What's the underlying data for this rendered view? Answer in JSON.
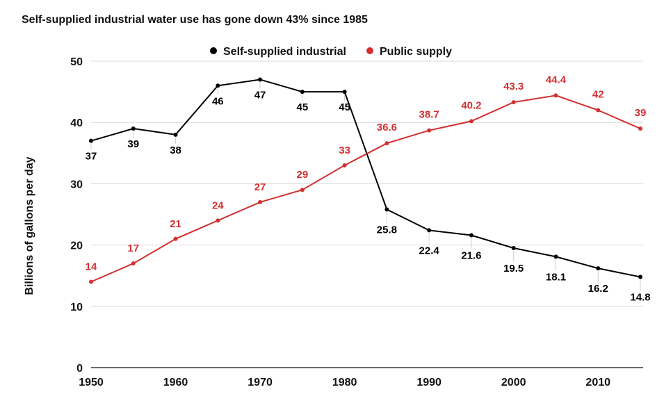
{
  "chart_data": {
    "type": "line",
    "title": "Self-supplied industrial water use has gone down 43% since 1985",
    "xlabel": "",
    "ylabel": "Billions of gallons per day",
    "x": [
      1950,
      1955,
      1960,
      1965,
      1970,
      1975,
      1980,
      1985,
      1990,
      1995,
      2000,
      2005,
      2010,
      2015
    ],
    "xticks": [
      1950,
      1960,
      1970,
      1980,
      1990,
      2000,
      2010
    ],
    "yticks": [
      0,
      10,
      20,
      30,
      40,
      50
    ],
    "xlim": [
      1950,
      2015
    ],
    "ylim": [
      0,
      50
    ],
    "grid": true,
    "legend_position": "top-center",
    "series": [
      {
        "name": "Self-supplied industrial",
        "color": "#000000",
        "values": [
          37,
          39,
          38,
          46,
          47,
          45,
          45,
          25.8,
          22.4,
          21.6,
          19.5,
          18.1,
          16.2,
          14.8
        ],
        "labels": [
          "37",
          "39",
          "38",
          "46",
          "47",
          "45",
          "45",
          "25.8",
          "22.4",
          "21.6",
          "19.5",
          "18.1",
          "16.2",
          "14.8"
        ]
      },
      {
        "name": "Public supply",
        "color": "#d32f2f",
        "values": [
          14,
          17,
          21,
          24,
          27,
          29,
          33,
          36.6,
          38.7,
          40.2,
          43.3,
          44.4,
          42,
          39
        ],
        "labels": [
          "14",
          "17",
          "21",
          "24",
          "27",
          "29",
          "33",
          "36.6",
          "38.7",
          "40.2",
          "43.3",
          "44.4",
          "42",
          "39"
        ]
      }
    ]
  }
}
